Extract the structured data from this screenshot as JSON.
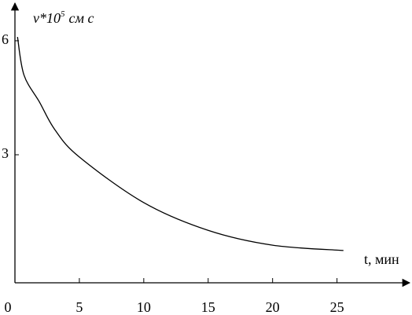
{
  "chart_data": {
    "type": "line",
    "y_label": {
      "base": "v*10",
      "exponent": "5",
      "unit": "см с"
    },
    "x_label": "t, мин",
    "x": [
      0.2,
      0.7,
      1.9,
      3.1,
      5,
      10,
      15,
      20,
      25.5
    ],
    "series": [
      {
        "color": "#000000",
        "values": [
          6.1,
          5.1,
          4.39,
          3.66,
          2.94,
          1.74,
          1.01,
          0.62,
          0.48
        ]
      }
    ],
    "xlim": [
      0,
      30.7
    ],
    "xticks": [
      0,
      5,
      10,
      15,
      20,
      25
    ],
    "ylim": [
      -0.37,
      6.97
    ],
    "yticks": [
      3,
      6
    ]
  }
}
